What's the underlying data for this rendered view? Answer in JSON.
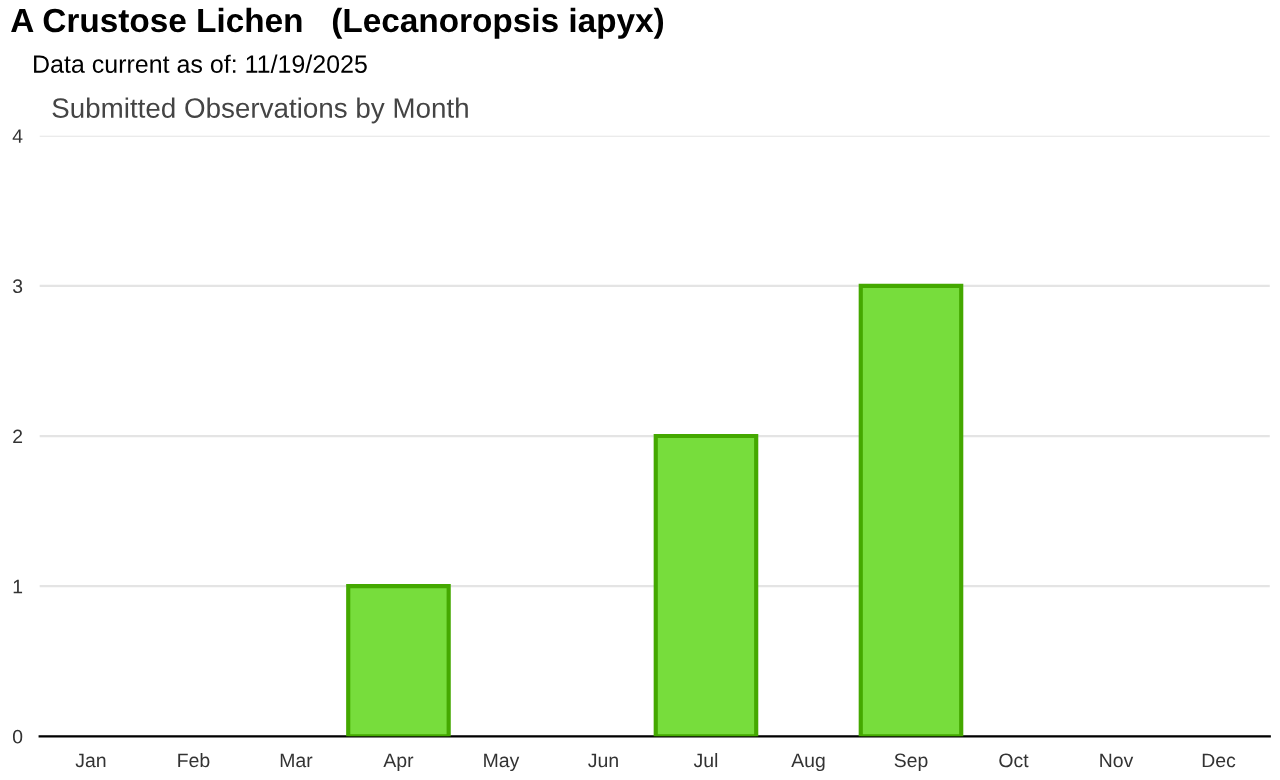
{
  "chart_data": {
    "type": "bar",
    "title": "A Crustose Lichen   (Lecanoropsis iapyx)",
    "subtitle": "Data current as of: 11/19/2025",
    "annotations": [
      "Submitted Observations by Month"
    ],
    "categories": [
      "Jan",
      "Feb",
      "Mar",
      "Apr",
      "May",
      "Jun",
      "Jul",
      "Aug",
      "Sep",
      "Oct",
      "Nov",
      "Dec"
    ],
    "values": [
      0,
      0,
      0,
      1,
      0,
      0,
      2,
      0,
      3,
      0,
      0,
      0
    ],
    "color": "#77dd3c",
    "ylim": [
      0,
      4
    ],
    "yticks": [
      0,
      1,
      2,
      3,
      4
    ],
    "grid": "y",
    "legend": false
  }
}
